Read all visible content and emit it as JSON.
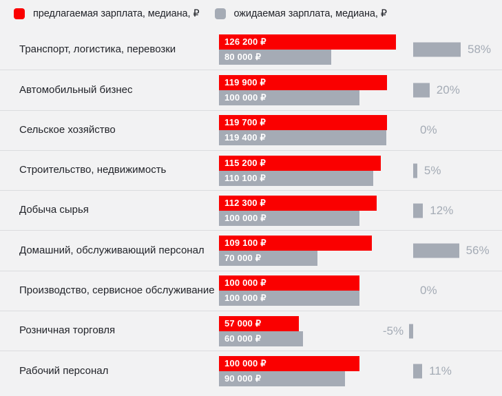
{
  "legend": {
    "offered": "предлагаемая зарплата, медиана, ₽",
    "expected": "ожидаемая зарплата, медиана, ₽"
  },
  "colors": {
    "offered_bar": "#fa0000",
    "expected_bar": "#a5abb5",
    "pct_bar": "#a5abb5",
    "pct_text": "#a4abb5",
    "label_text": "#212329",
    "value_text": "#ffffff",
    "background": "#f2f2f3",
    "divider": "#dbdcde"
  },
  "chart_data": {
    "type": "bar",
    "orientation": "horizontal",
    "value_unit": "₽",
    "x_max": 126200,
    "legend_position": "top",
    "series": [
      "предлагаемая зарплата, медиана, ₽",
      "ожидаемая зарплата, медиана, ₽"
    ],
    "rows": [
      {
        "category": "Транспорт, логистика, перевозки",
        "offered": 126200,
        "offered_label": "126 200 ₽",
        "expected": 80000,
        "expected_label": "80 000 ₽",
        "change_pct": 58,
        "change_label": "58%"
      },
      {
        "category": "Автомобильный бизнес",
        "offered": 119900,
        "offered_label": "119 900 ₽",
        "expected": 100000,
        "expected_label": "100 000 ₽",
        "change_pct": 20,
        "change_label": "20%"
      },
      {
        "category": "Сельское хозяйство",
        "offered": 119700,
        "offered_label": "119 700 ₽",
        "expected": 119400,
        "expected_label": "119 400 ₽",
        "change_pct": 0,
        "change_label": "0%"
      },
      {
        "category": "Строительство, недвижимость",
        "offered": 115200,
        "offered_label": "115 200 ₽",
        "expected": 110100,
        "expected_label": "110 100 ₽",
        "change_pct": 5,
        "change_label": "5%"
      },
      {
        "category": "Добыча сырья",
        "offered": 112300,
        "offered_label": "112 300 ₽",
        "expected": 100000,
        "expected_label": "100 000 ₽",
        "change_pct": 12,
        "change_label": "12%"
      },
      {
        "category": "Домашний, обслуживающий персонал",
        "offered": 109100,
        "offered_label": "109 100 ₽",
        "expected": 70000,
        "expected_label": "70 000 ₽",
        "change_pct": 56,
        "change_label": "56%"
      },
      {
        "category": "Производство, сервисное обслуживание",
        "offered": 100000,
        "offered_label": "100 000 ₽",
        "expected": 100000,
        "expected_label": "100 000 ₽",
        "change_pct": 0,
        "change_label": "0%"
      },
      {
        "category": "Розничная торговля",
        "offered": 57000,
        "offered_label": "57 000 ₽",
        "expected": 60000,
        "expected_label": "60 000 ₽",
        "change_pct": -5,
        "change_label": "-5%"
      },
      {
        "category": "Рабочий персонал",
        "offered": 100000,
        "offered_label": "100 000 ₽",
        "expected": 90000,
        "expected_label": "90 000 ₽",
        "change_pct": 11,
        "change_label": "11%"
      }
    ]
  }
}
